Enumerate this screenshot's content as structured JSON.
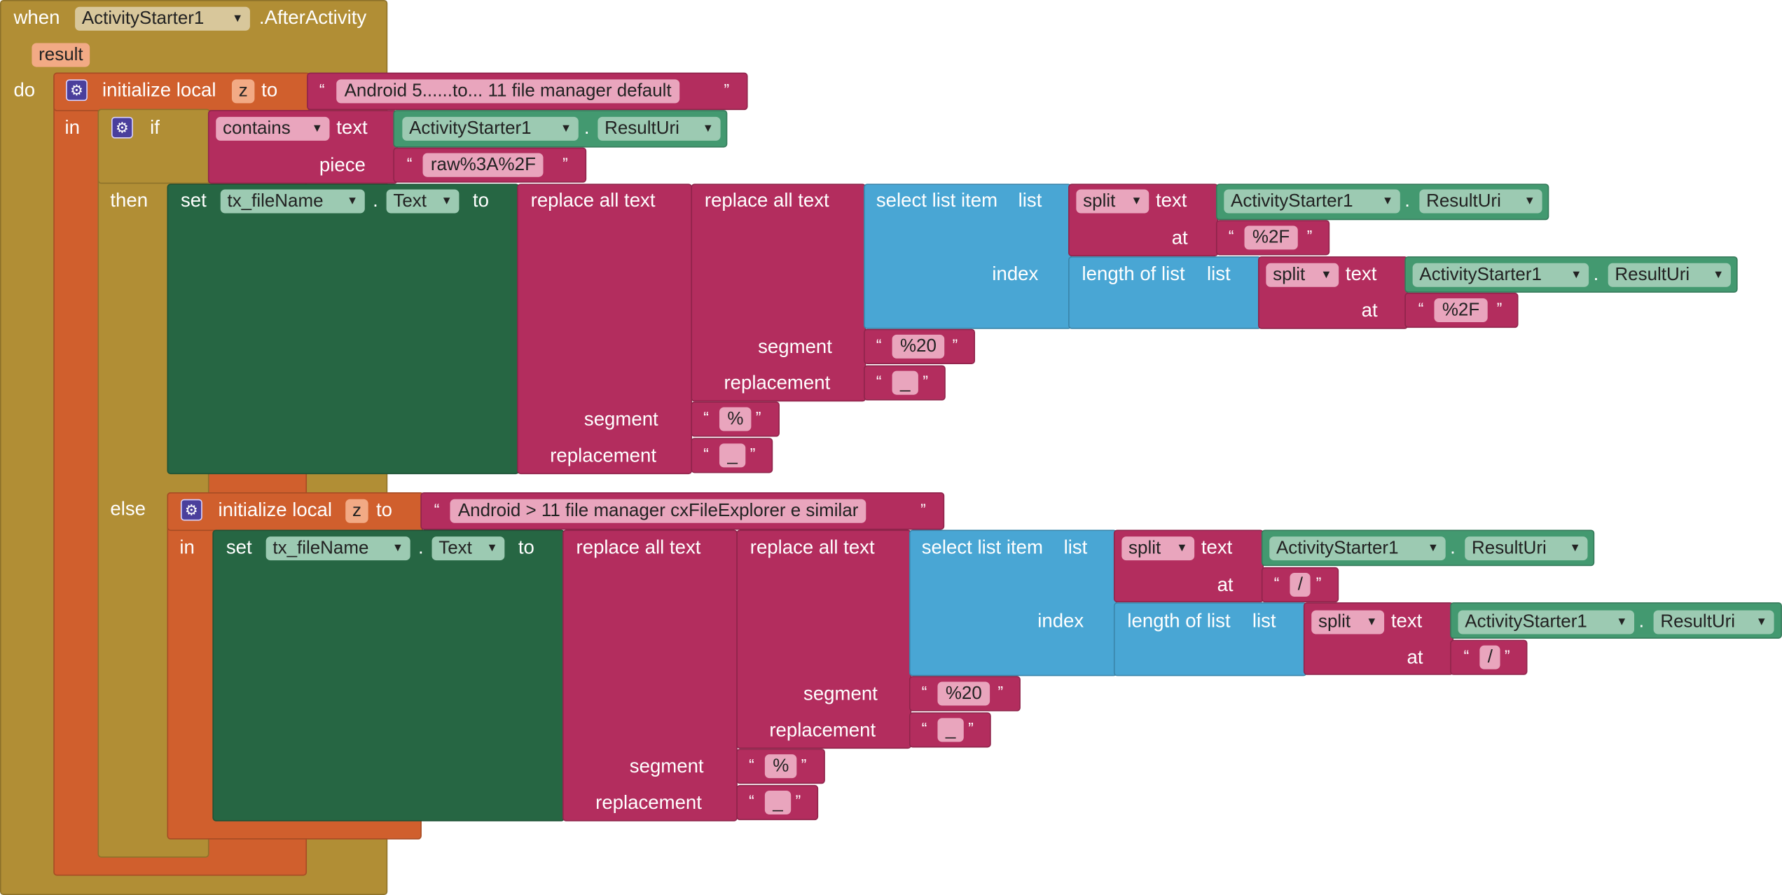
{
  "event": {
    "when": "when",
    "component": "ActivityStarter1",
    "event_name": ".AfterActivity",
    "param": "result",
    "do": "do"
  },
  "outer_local": {
    "label": "initialize local",
    "var": "z",
    "to": "to",
    "value": "Android 5......to... 11 file manager default",
    "in": "in"
  },
  "if_block": {
    "if": "if",
    "then": "then",
    "else": "else",
    "contains": "contains",
    "text": "text",
    "piece": "piece",
    "piece_value": "raw%3A%2F"
  },
  "else_local": {
    "label": "initialize local",
    "var": "z",
    "to": "to",
    "value": "Android > 11 file manager cxFileExplorer e similar",
    "in": "in"
  },
  "set_block": {
    "set": "set",
    "component": "tx_fileName",
    "dot": ".",
    "property": "Text",
    "to": "to"
  },
  "text_ops": {
    "replace_all": "replace all text",
    "segment": "segment",
    "replacement": "replacement",
    "select_list_item": "select list item",
    "list": "list",
    "index": "index",
    "length_of_list": "length of list",
    "split": "split",
    "text": "text",
    "at": "at"
  },
  "component_getter": {
    "component": "ActivityStarter1",
    "dot": ".",
    "property": "ResultUri"
  },
  "strings": {
    "sep_then": "%2F",
    "sep_else": "/",
    "seg_space": "%20",
    "seg_percent": "%",
    "underscore": "_"
  },
  "quotes": {
    "open": "“",
    "close": "”"
  },
  "colors": {
    "control": "#b18e35",
    "variable": "#d05f2d",
    "text": "#b32d5e",
    "list": "#49a6d4",
    "component_getter": "#439970",
    "component_setter": "#266643"
  }
}
